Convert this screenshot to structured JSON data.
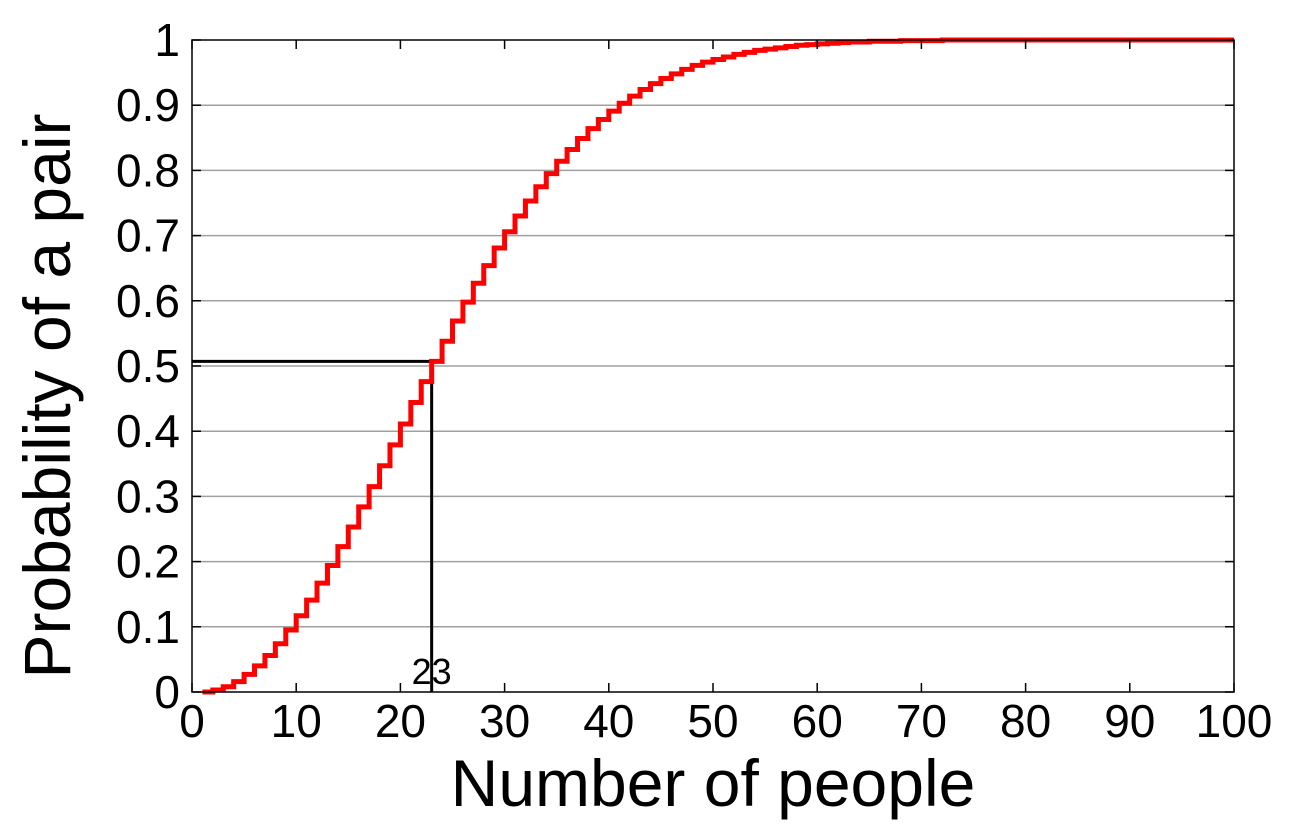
{
  "chart_data": {
    "type": "line",
    "step": true,
    "xlabel": "Number of people",
    "ylabel": "Probability of a pair",
    "xlim": [
      0,
      100
    ],
    "ylim": [
      0,
      1
    ],
    "xticks": [
      "0",
      "10",
      "20",
      "30",
      "40",
      "50",
      "60",
      "70",
      "80",
      "90",
      "100"
    ],
    "yticks": [
      "0",
      "0.1",
      "0.2",
      "0.3",
      "0.4",
      "0.5",
      "0.6",
      "0.7",
      "0.8",
      "0.9",
      "1"
    ],
    "grid": "horizontal",
    "series": [
      {
        "color": "#ff0000",
        "x": [
          1,
          2,
          3,
          4,
          5,
          6,
          7,
          8,
          9,
          10,
          11,
          12,
          13,
          14,
          15,
          16,
          17,
          18,
          19,
          20,
          21,
          22,
          23,
          24,
          25,
          26,
          27,
          28,
          29,
          30,
          31,
          32,
          33,
          34,
          35,
          36,
          37,
          38,
          39,
          40,
          41,
          42,
          43,
          44,
          45,
          46,
          47,
          48,
          49,
          50,
          51,
          52,
          53,
          54,
          55,
          56,
          57,
          58,
          59,
          60,
          61,
          62,
          63,
          64,
          65,
          66,
          67,
          68,
          69,
          70,
          71,
          72,
          73,
          74,
          75,
          76,
          77,
          78,
          79,
          80,
          81,
          82,
          83,
          84,
          85,
          86,
          87,
          88,
          89,
          90,
          91,
          92,
          93,
          94,
          95,
          96,
          97,
          98,
          99,
          100
        ],
        "y": [
          0,
          0.003,
          0.008,
          0.016,
          0.027,
          0.04,
          0.056,
          0.074,
          0.095,
          0.117,
          0.141,
          0.167,
          0.194,
          0.223,
          0.253,
          0.284,
          0.315,
          0.347,
          0.379,
          0.411,
          0.444,
          0.476,
          0.507,
          0.538,
          0.569,
          0.598,
          0.627,
          0.654,
          0.681,
          0.706,
          0.73,
          0.753,
          0.775,
          0.795,
          0.814,
          0.832,
          0.849,
          0.864,
          0.878,
          0.891,
          0.903,
          0.914,
          0.924,
          0.933,
          0.941,
          0.948,
          0.955,
          0.961,
          0.966,
          0.97,
          0.974,
          0.978,
          0.981,
          0.984,
          0.986,
          0.988,
          0.99,
          0.992,
          0.993,
          0.994,
          0.995,
          0.996,
          0.997,
          0.997,
          0.998,
          0.998,
          0.998,
          0.999,
          0.999,
          0.999,
          0.999,
          1,
          1,
          1,
          1,
          1,
          1,
          1,
          1,
          1,
          1,
          1,
          1,
          1,
          1,
          1,
          1,
          1,
          1,
          1,
          1,
          1,
          1,
          1,
          1,
          1,
          1,
          1,
          1,
          1
        ]
      }
    ],
    "annotation": {
      "label": "23",
      "x": 23,
      "y": 0.507
    }
  }
}
